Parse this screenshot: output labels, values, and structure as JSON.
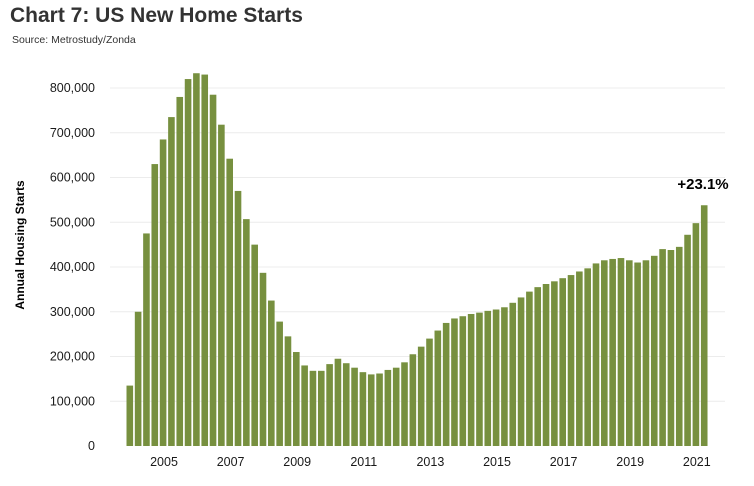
{
  "title": "Chart 7: US New Home Starts",
  "source": "Source: Metrostudy/Zonda",
  "chart_data": {
    "type": "bar",
    "title": "Chart 7: US New Home Starts",
    "ylabel": "Annual Housing Starts",
    "xlabel": "",
    "ylim": [
      0,
      850000
    ],
    "grid": true,
    "bar_color": "#77903f",
    "y_ticks": [
      0,
      100000,
      200000,
      300000,
      400000,
      500000,
      600000,
      700000,
      800000
    ],
    "y_tick_labels": [
      "0",
      "100,000",
      "200,000",
      "300,000",
      "400,000",
      "500,000",
      "600,000",
      "700,000",
      "800,000"
    ],
    "x_tick_labels": [
      "2005",
      "2007",
      "2009",
      "2011",
      "2013",
      "2015",
      "2017",
      "2019",
      "2021"
    ],
    "start": "2004 Q1",
    "frequency": "quarterly",
    "values": [
      135000,
      300000,
      475000,
      630000,
      685000,
      735000,
      780000,
      820000,
      833000,
      830000,
      785000,
      718000,
      642000,
      570000,
      507000,
      450000,
      387000,
      325000,
      278000,
      245000,
      210000,
      180000,
      168000,
      168000,
      183000,
      195000,
      185000,
      175000,
      165000,
      160000,
      162000,
      170000,
      175000,
      187000,
      205000,
      222000,
      240000,
      258000,
      275000,
      285000,
      290000,
      295000,
      298000,
      302000,
      305000,
      310000,
      320000,
      332000,
      345000,
      355000,
      362000,
      368000,
      375000,
      382000,
      390000,
      397000,
      408000,
      415000,
      418000,
      420000,
      415000,
      410000,
      415000,
      425000,
      440000,
      438000,
      445000,
      472000,
      498000,
      538000
    ],
    "annotation": "+23.1%"
  }
}
